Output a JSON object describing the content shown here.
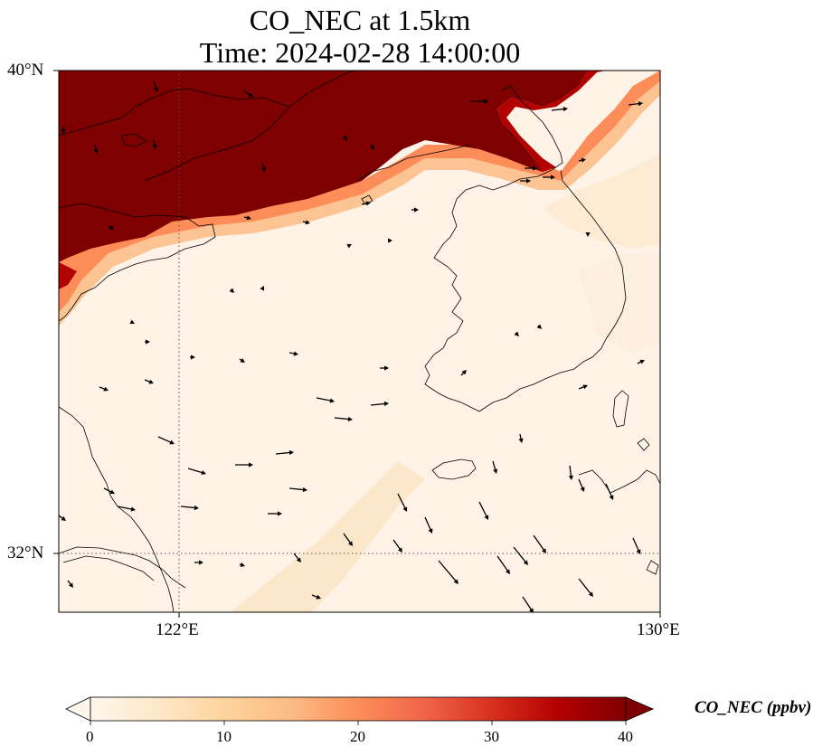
{
  "title": {
    "line1": "CO_NEC at 1.5km",
    "line2": "Time: 2024-02-28 14:00:00"
  },
  "axes": {
    "lat_labels": [
      "40°N",
      "32°N"
    ],
    "lon_labels": [
      "122°E",
      "130°E"
    ],
    "lon_range": [
      120,
      130
    ],
    "lat_range": [
      31,
      40
    ],
    "gridlines": "dotted at 122°E and 32°N"
  },
  "colorbar": {
    "label": "CO_NEC (ppbv)",
    "ticks": [
      "0",
      "10",
      "20",
      "30",
      "40"
    ],
    "range": [
      0,
      40
    ],
    "colormap": "OrRd",
    "extend": "both",
    "colors": [
      "#fff7ec",
      "#fee8c8",
      "#fdd49e",
      "#fdbb84",
      "#fc8d59",
      "#ef6548",
      "#d7301f",
      "#b30000",
      "#7f0000"
    ]
  },
  "field": {
    "high_region": "northern coast (Bohai / north China), saturated > 40 ppbv",
    "plume": "faint diagonal band from southwest toward northeast over Yellow Sea"
  }
}
